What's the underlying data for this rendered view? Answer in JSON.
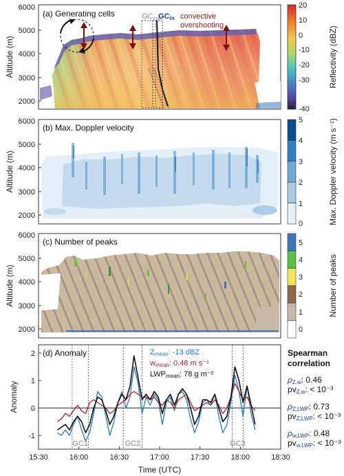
{
  "chart_data": [
    {
      "type": "heatmap",
      "panel_title": "(a) Generating cells",
      "ylabel": "Altitude (m)",
      "yticks": [
        "2000",
        "3000",
        "4000",
        "5000",
        "6000"
      ],
      "ylim": [
        1600,
        6000
      ],
      "colorbar_label": "Reflectivity (dBZ)",
      "colorbar_ticks": [
        "20",
        "10",
        "0",
        "-10",
        "-20",
        "-30",
        "-40"
      ],
      "annotations": {
        "gc_out": "GC",
        "gc_out_sub": "out",
        "gc_in": "GC",
        "gc_in_sub": "in",
        "convective": "convective",
        "overshooting": "overshooting"
      },
      "colors": {
        "low": "#3b1e5e",
        "mid": "#7ed46c",
        "high": "#e23a26"
      }
    },
    {
      "type": "heatmap",
      "panel_title": "(b) Max. Doppler velocity",
      "ylabel": "Altitude (m)",
      "yticks": [
        "2000",
        "3000",
        "4000",
        "5000",
        "6000"
      ],
      "ylim": [
        1600,
        6000
      ],
      "colorbar_label": "Max. Doppler velocity (m s⁻¹)",
      "colorbar_ticks": [
        "5",
        "4",
        "3",
        "2",
        "1",
        "0"
      ]
    },
    {
      "type": "heatmap",
      "panel_title": "(c) Number of peaks",
      "ylabel": "Altitude (m)",
      "yticks": [
        "2000",
        "3000",
        "4000",
        "5000",
        "6000"
      ],
      "ylim": [
        1600,
        6000
      ],
      "colorbar_label": "Number of peaks",
      "colorbar_ticks": [
        "5",
        "4",
        "3",
        "2",
        "1",
        "0"
      ]
    },
    {
      "type": "line",
      "panel_title": "(d) Anomaly",
      "ylabel": "Anomaly",
      "xlabel": "Time (UTC)",
      "xticks": [
        "15:30",
        "16:00",
        "16:30",
        "17:00",
        "17:30",
        "18:00",
        "18:30"
      ],
      "xlim": [
        930,
        1110
      ],
      "yticks": [
        "-1",
        "0",
        "1",
        "2"
      ],
      "ylim": [
        -1.5,
        2.3
      ],
      "gc_labels": [
        "GC1",
        "GC2",
        "GC3"
      ],
      "gc_bounds": [
        [
          955,
          967
        ],
        [
          993,
          1007
        ],
        [
          1074,
          1082
        ]
      ],
      "legend": {
        "z_label": "Z",
        "z_sub": "mean",
        "z_value": ": -13 dBZ",
        "w_label": "w",
        "w_sub": "mean",
        "w_value": ": 0.48 m s⁻¹",
        "lwp_label": "LWP",
        "lwp_sub": "mean",
        "lwp_value": ": 78 g m⁻²"
      },
      "x": [
        944,
        947,
        950,
        953,
        956,
        959,
        962,
        965,
        968,
        971,
        974,
        977,
        980,
        983,
        986,
        989,
        992,
        995,
        998,
        1001,
        1004,
        1007,
        1010,
        1013,
        1016,
        1019,
        1022,
        1025,
        1028,
        1031,
        1034,
        1037,
        1040,
        1043,
        1046,
        1049,
        1052,
        1055,
        1058,
        1061,
        1064,
        1067,
        1070,
        1073,
        1076,
        1079,
        1082,
        1085,
        1088,
        1091
      ],
      "series": [
        {
          "name": "Z",
          "color": "#1f7bbf",
          "values": [
            -0.9,
            -1.0,
            -0.8,
            -1.0,
            -0.6,
            -0.3,
            -0.8,
            -1.2,
            -0.9,
            -0.2,
            0.6,
            0.4,
            -0.3,
            -1.0,
            -0.5,
            0.2,
            0.6,
            0.0,
            0.4,
            1.5,
            0.9,
            -0.2,
            0.4,
            0.1,
            0.5,
            0.3,
            -0.6,
            0.2,
            0.4,
            -0.1,
            0.5,
            0.6,
            0.3,
            -0.4,
            -0.9,
            -0.5,
            0.2,
            0.3,
            0.1,
            0.5,
            -0.3,
            -0.9,
            -0.6,
            0.2,
            1.2,
            0.6,
            -0.3,
            0.8,
            -0.2,
            -0.8
          ]
        },
        {
          "name": "w",
          "color": "#b2182b",
          "values": [
            -0.5,
            -0.4,
            -0.2,
            -0.3,
            -0.1,
            0.1,
            -0.1,
            -0.2,
            0.2,
            0.3,
            0.2,
            0.1,
            0.0,
            -0.2,
            -0.1,
            0.1,
            0.2,
            0.3,
            0.5,
            0.6,
            0.5,
            0.4,
            0.4,
            0.3,
            0.4,
            0.2,
            0.1,
            0.3,
            0.2,
            0.0,
            0.3,
            0.4,
            0.5,
            0.2,
            -0.1,
            0.0,
            0.1,
            0.2,
            0.1,
            0.3,
            0.1,
            -0.2,
            0.0,
            0.4,
            0.9,
            0.6,
            0.3,
            0.4,
            0.1,
            -0.1
          ]
        },
        {
          "name": "LWP",
          "color": "#111111",
          "values": [
            -0.8,
            -0.7,
            -0.6,
            -0.8,
            -0.5,
            -0.3,
            -0.5,
            -0.9,
            -0.6,
            0.0,
            0.4,
            0.3,
            -0.1,
            -0.6,
            -0.3,
            0.2,
            0.5,
            0.3,
            0.8,
            1.9,
            1.1,
            0.3,
            0.5,
            0.3,
            0.6,
            0.4,
            -0.2,
            0.3,
            0.5,
            0.1,
            0.5,
            0.7,
            0.5,
            0.0,
            -0.6,
            -0.3,
            0.3,
            0.3,
            0.2,
            0.5,
            0.0,
            -0.5,
            -0.3,
            0.4,
            1.5,
            1.0,
            0.2,
            0.8,
            0.1,
            -0.6
          ]
        }
      ]
    }
  ],
  "spearman": {
    "title_line1": "Spearman",
    "title_line2": "correlation",
    "entries": [
      {
        "rho": "ρ",
        "rho_sub": "Z,w",
        "rho_value": ": 0.46",
        "pv": "pv",
        "pv_sub": "Z,w",
        "pv_value": ": < 10⁻³"
      },
      {
        "rho": "ρ",
        "rho_sub": "Z,LWP",
        "rho_value": ": 0.73",
        "pv": "pv",
        "pv_sub": "Z,LWP",
        "pv_value": ": < 10⁻³"
      },
      {
        "rho": "ρ",
        "rho_sub": "w,LWP",
        "rho_value": ": 0.48",
        "pv": "pv",
        "pv_sub": "w,LWP",
        "pv_value": ": < 10⁻³"
      }
    ]
  }
}
